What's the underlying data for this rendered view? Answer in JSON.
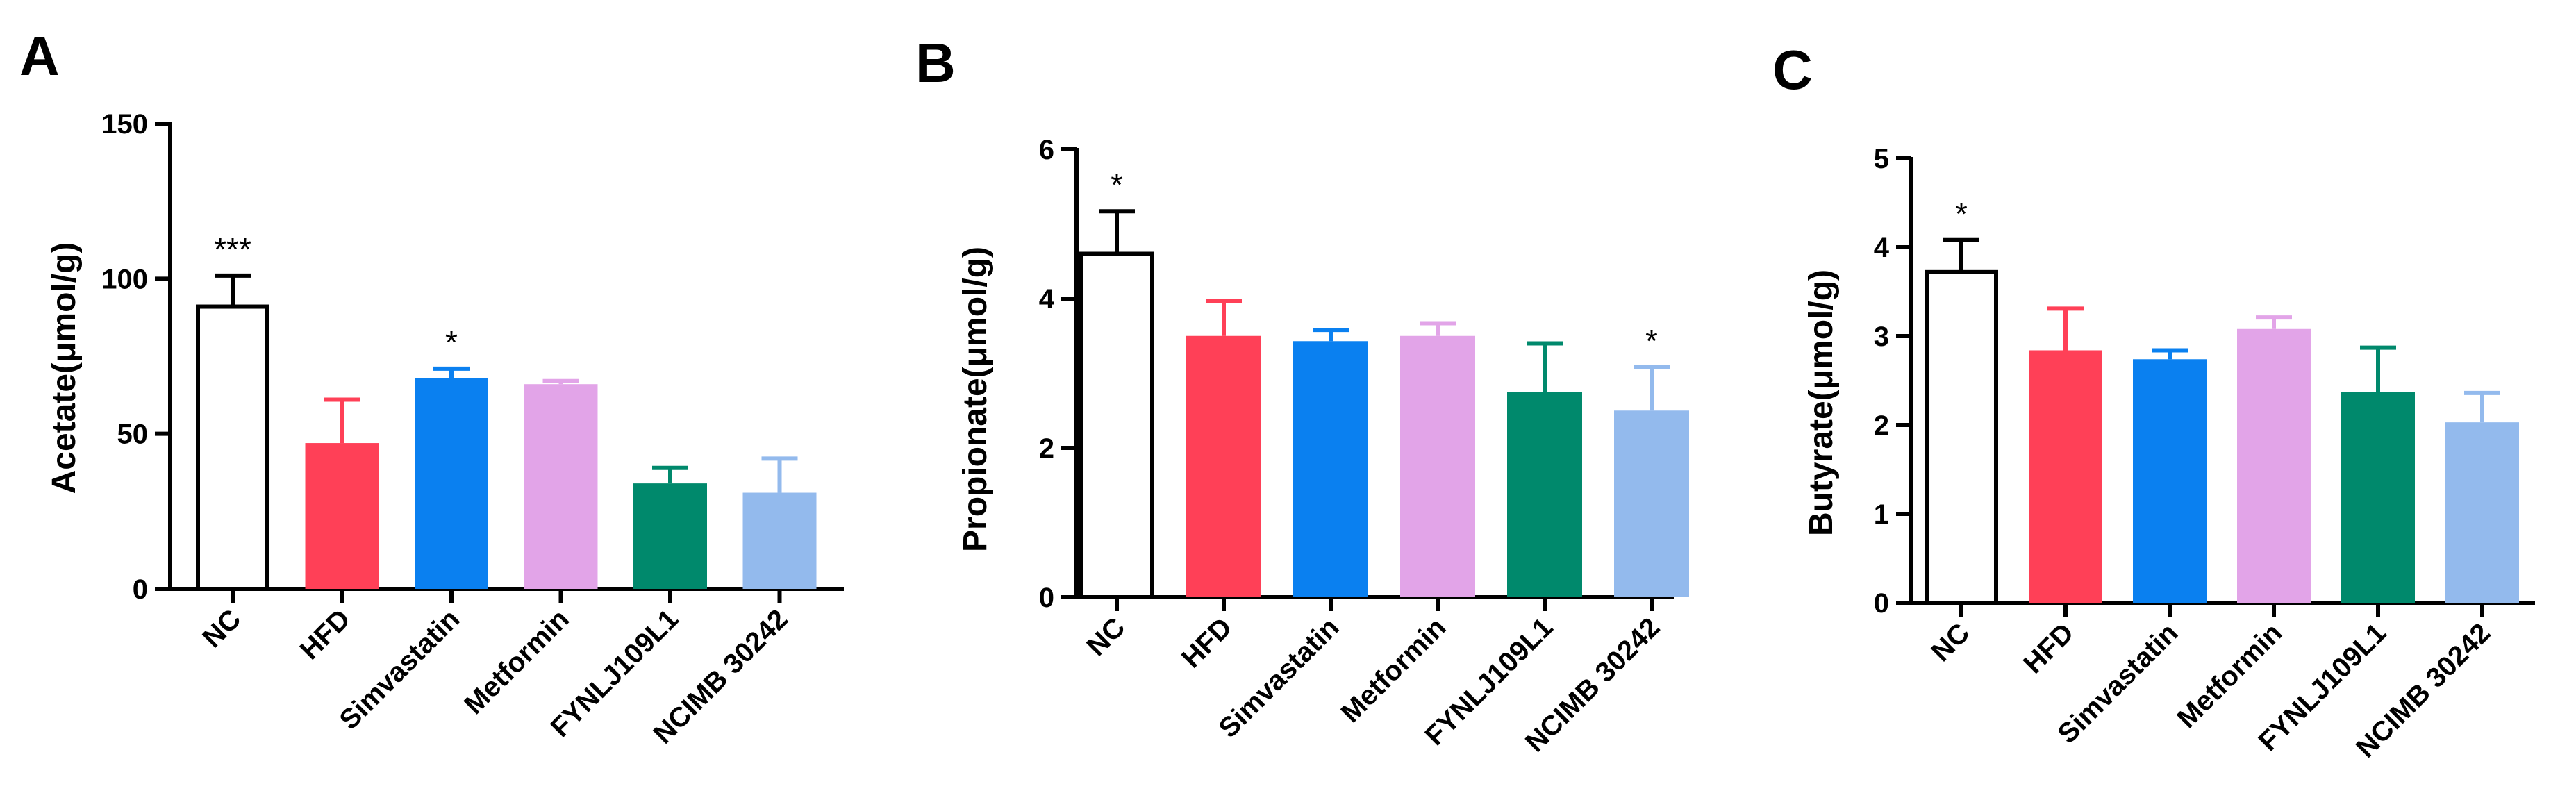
{
  "colors": {
    "NC": "#ffffff",
    "HFD": "#ff4057",
    "Simvastatin": "#0a80f0",
    "Metformin": "#e2a4e8",
    "FYNLJ109L1": "#00896c",
    "NCIMB 30242": "#93baed"
  },
  "chart_data": [
    {
      "type": "bar",
      "panel": "A",
      "ylabel": "Acetate(μmol/g)",
      "ylim": [
        0,
        150
      ],
      "yticks": [
        0,
        50,
        100,
        150
      ],
      "categories": [
        "NC",
        "HFD",
        "Simvastatin",
        "Metformin",
        "FYNLJ109L1",
        "NCIMB 30242"
      ],
      "values": [
        91,
        47,
        68,
        66,
        34,
        31
      ],
      "errors": [
        10,
        14,
        3,
        1,
        5,
        11
      ],
      "significance": [
        "***",
        "",
        "*",
        "",
        "",
        ""
      ]
    },
    {
      "type": "bar",
      "panel": "B",
      "ylabel": "Propionate(μmol/g)",
      "ylim": [
        0,
        6
      ],
      "yticks": [
        0,
        2,
        4,
        6
      ],
      "categories": [
        "NC",
        "HFD",
        "Simvastatin",
        "Metformin",
        "FYNLJ109L1",
        "NCIMB 30242"
      ],
      "values": [
        4.6,
        3.5,
        3.43,
        3.5,
        2.75,
        2.5
      ],
      "errors": [
        0.57,
        0.47,
        0.15,
        0.17,
        0.65,
        0.58
      ],
      "significance": [
        "*",
        "",
        "",
        "",
        "",
        "*"
      ]
    },
    {
      "type": "bar",
      "panel": "C",
      "ylabel": "Butyrate(μmol/g)",
      "ylim": [
        0,
        5
      ],
      "yticks": [
        0,
        1,
        2,
        3,
        4,
        5
      ],
      "categories": [
        "NC",
        "HFD",
        "Simvastatin",
        "Metformin",
        "FYNLJ109L1",
        "NCIMB 30242"
      ],
      "values": [
        3.72,
        2.84,
        2.74,
        3.08,
        2.37,
        2.03
      ],
      "errors": [
        0.36,
        0.47,
        0.1,
        0.13,
        0.5,
        0.33
      ],
      "significance": [
        "*",
        "",
        "",
        "",
        "",
        ""
      ]
    }
  ]
}
